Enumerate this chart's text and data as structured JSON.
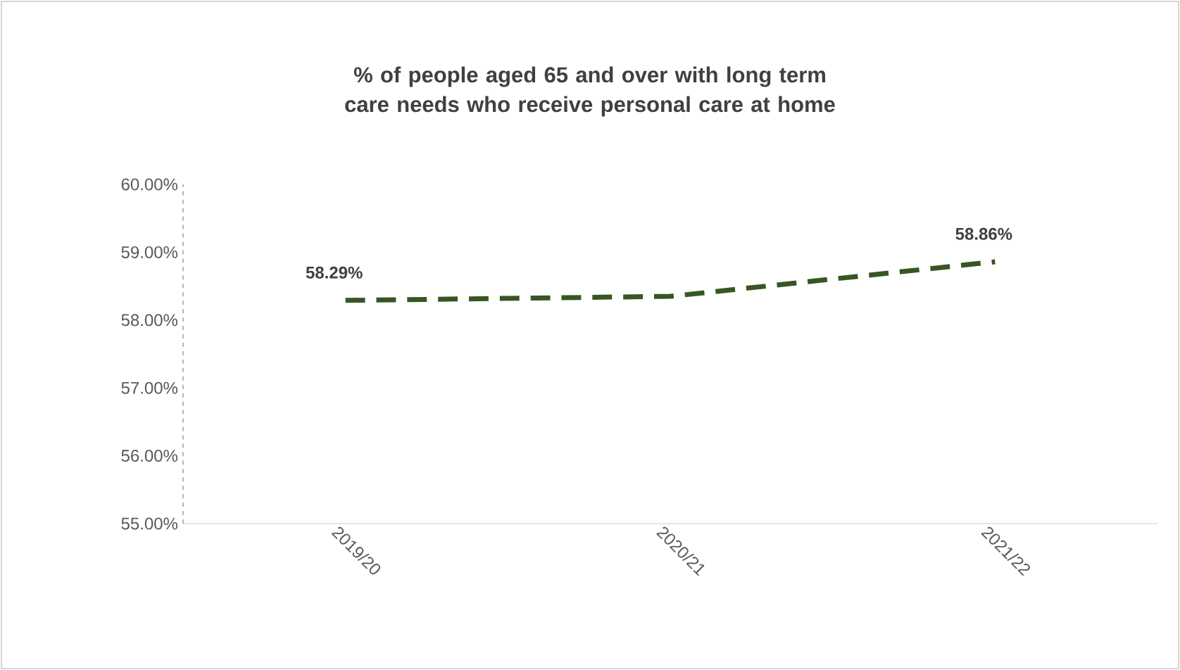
{
  "chart_data": {
    "type": "line",
    "title": "% of people aged 65 and over with long term care needs who receive personal care at home",
    "categories": [
      "2019/20",
      "2020/21",
      "2021/22"
    ],
    "series": [
      {
        "color": "#375623",
        "values": [
          58.29,
          58.35,
          58.86
        ],
        "value_labels": [
          "58.29%",
          null,
          "58.86%"
        ]
      }
    ],
    "ylim": [
      55,
      60
    ],
    "yticks": [
      {
        "value": 55,
        "label": "55.00%"
      },
      {
        "value": 56,
        "label": "56.00%"
      },
      {
        "value": 57,
        "label": "57.00%"
      },
      {
        "value": 58,
        "label": "58.00%"
      },
      {
        "value": 59,
        "label": "59.00%"
      },
      {
        "value": 60,
        "label": "60.00%"
      }
    ],
    "grid": false,
    "marker": "none",
    "line_style": "dashed"
  }
}
